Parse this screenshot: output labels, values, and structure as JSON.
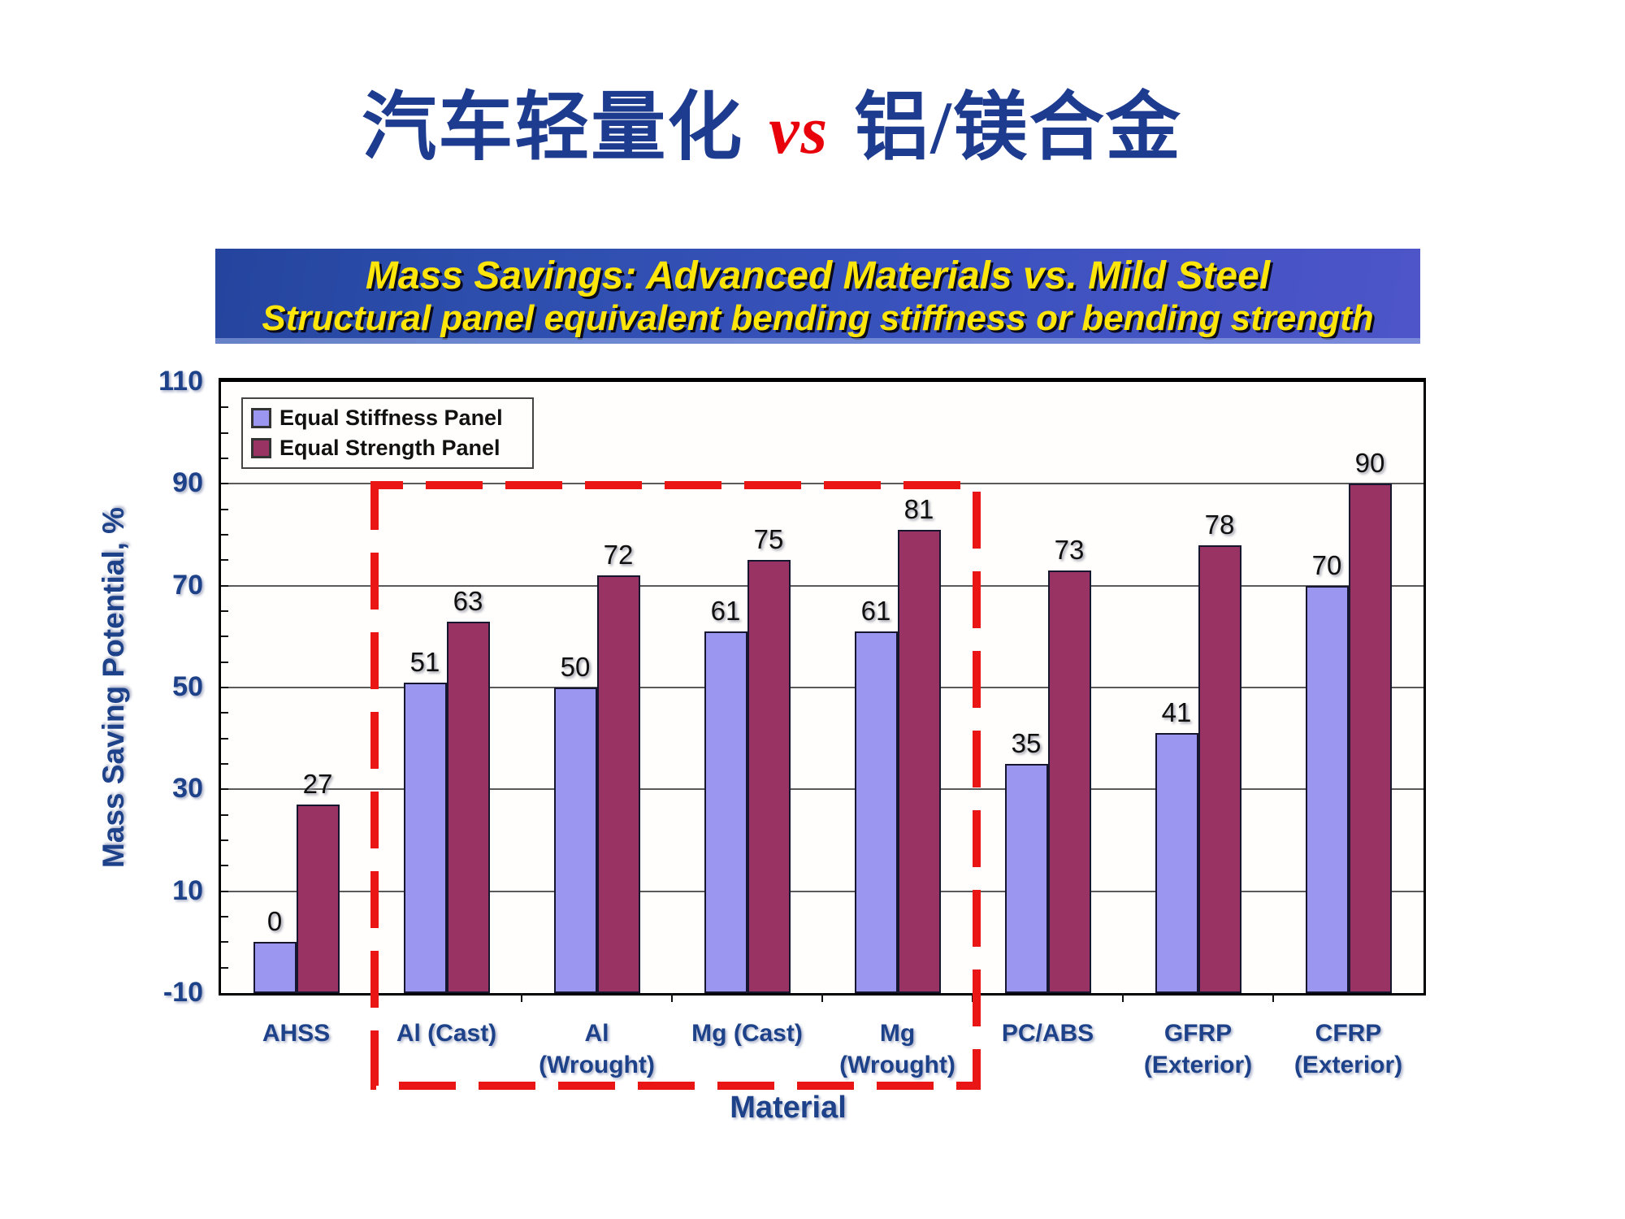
{
  "slide_title": {
    "part1": "汽车轻量化 ",
    "vs": "vs",
    "part2": " 铝/镁合金"
  },
  "banner": {
    "line1": "Mass Savings: Advanced Materials vs. Mild Steel",
    "line2": "Structural panel equivalent bending stiffness or bending strength"
  },
  "chart_data": {
    "type": "bar",
    "title": "Mass Savings: Advanced Materials vs. Mild Steel",
    "subtitle": "Structural panel equivalent bending stiffness or bending strength",
    "categories": [
      "AHSS",
      "Al (Cast)",
      "Al (Wrought)",
      "Mg (Cast)",
      "Mg (Wrought)",
      "PC/ABS",
      "GFRP (Exterior)",
      "CFRP (Exterior)"
    ],
    "category_label_lines": [
      [
        "AHSS"
      ],
      [
        "Al (Cast)"
      ],
      [
        "Al",
        "(Wrought)"
      ],
      [
        "Mg (Cast)"
      ],
      [
        "Mg",
        "(Wrought)"
      ],
      [
        "PC/ABS"
      ],
      [
        "GFRP",
        "(Exterior)"
      ],
      [
        "CFRP",
        "(Exterior)"
      ]
    ],
    "series": [
      {
        "name": "Equal Stiffness Panel",
        "color": "#9B97F0",
        "values": [
          0,
          51,
          50,
          61,
          61,
          35,
          41,
          70
        ]
      },
      {
        "name": "Equal Strength Panel",
        "color": "#993364",
        "values": [
          27,
          63,
          72,
          75,
          81,
          73,
          78,
          90
        ]
      }
    ],
    "xlabel": "Material",
    "ylabel": "Mass Saving Potential, %",
    "ylim": [
      -10,
      110
    ],
    "yticks": [
      110,
      90,
      70,
      50,
      30,
      10,
      -10
    ],
    "gridline_values": [
      90,
      70,
      50,
      30,
      10
    ],
    "minor_tick_step": 5,
    "grid": true,
    "legend_position": "top-left",
    "bar_base": -10,
    "highlight": {
      "from_category": "Al (Cast)",
      "to_category": "Mg (Wrought)",
      "style": "red-dashed-box",
      "color": "#EA1515"
    }
  },
  "colors": {
    "title_blue": "#1E3C8F",
    "title_vs_red": "#E8000A",
    "banner_text_yellow": "#FFE60A",
    "banner_bg_left": "#2E4FAE",
    "banner_bg_right": "#4E55C8",
    "axis_text_blue": "#1E4289",
    "value_label_black": "#101010",
    "bar_stiffness_blue": "#9B97F0",
    "bar_strength_maroon": "#993364",
    "highlight_red": "#EA1515"
  }
}
